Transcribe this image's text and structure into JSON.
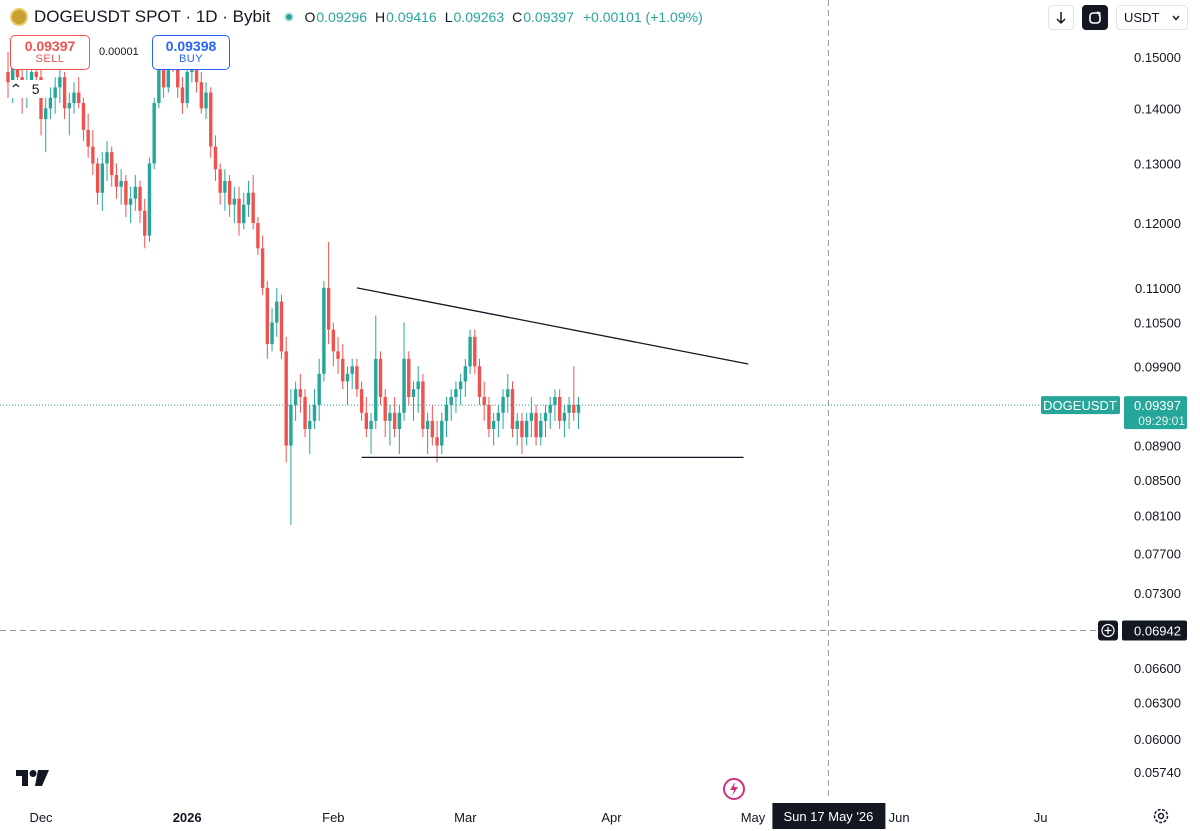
{
  "header": {
    "symbol": "DOGEUSDT SPOT · 1D · Bybit",
    "open_label": "O",
    "open": "0.09296",
    "high_label": "H",
    "high": "0.09416",
    "low_label": "L",
    "low": "0.09263",
    "close_label": "C",
    "close": "0.09397",
    "change": "+0.00101 (+1.09%)",
    "coin_icon": "doge-coin-icon",
    "status_icon": "market-open-dot-icon"
  },
  "trade": {
    "sell_price": "0.09397",
    "sell_label": "SELL",
    "spread": "0.00001",
    "buy_price": "0.09398",
    "buy_label": "BUY"
  },
  "indicators": {
    "collapse_icon": "chevron-up-icon",
    "count": "5"
  },
  "toolbar": {
    "download_icon": "arrow-down-icon",
    "sync_icon": "sync-icon",
    "currency": "USDT",
    "currency_icon": "chevron-down-icon"
  },
  "price_axis": {
    "ticks": [
      "0.15000",
      "0.14000",
      "0.13000",
      "0.12000",
      "0.11000",
      "0.10500",
      "0.09900",
      "0.08900",
      "0.08500",
      "0.08100",
      "0.07700",
      "0.07300",
      "0.06600",
      "0.06300",
      "0.06000",
      "0.05740"
    ],
    "last_symbol": "DOGEUSDT",
    "last_price": "0.09397",
    "countdown": "09:29:01",
    "crosshair_price": "0.06942",
    "crosshair_icon": "plus-circle-icon"
  },
  "time_axis": {
    "ticks": [
      "Dec",
      "2026",
      "Feb",
      "Mar",
      "Apr",
      "May",
      "Jun",
      "Ju"
    ],
    "crosshair_date": "Sun 17 May '26"
  },
  "footer": {
    "logo": "tradingview-logo",
    "bolt_icon": "lightning-icon",
    "settings_icon": "gear-icon"
  },
  "colors": {
    "up": "#26a69a",
    "down": "#ef5350",
    "text": "#131722",
    "last_price_bg": "#26a69a",
    "crosshair_bg": "#131722"
  },
  "chart_data": {
    "type": "candlestick",
    "symbol": "DOGEUSDT",
    "interval": "1D",
    "ylim": [
      0.0574,
      0.152
    ],
    "log_scale": true,
    "x": [
      "2025-11-24",
      "2026-04-15"
    ],
    "candles": [
      [
        0.147,
        0.151,
        0.142,
        0.145
      ],
      [
        0.145,
        0.15,
        0.141,
        0.149
      ],
      [
        0.149,
        0.152,
        0.144,
        0.146
      ],
      [
        0.146,
        0.149,
        0.139,
        0.142
      ],
      [
        0.142,
        0.148,
        0.14,
        0.145
      ],
      [
        0.145,
        0.149,
        0.143,
        0.147
      ],
      [
        0.147,
        0.15,
        0.143,
        0.146
      ],
      [
        0.146,
        0.148,
        0.135,
        0.138
      ],
      [
        0.138,
        0.142,
        0.132,
        0.14
      ],
      [
        0.14,
        0.144,
        0.138,
        0.142
      ],
      [
        0.142,
        0.146,
        0.139,
        0.144
      ],
      [
        0.144,
        0.148,
        0.141,
        0.146
      ],
      [
        0.146,
        0.147,
        0.138,
        0.14
      ],
      [
        0.14,
        0.143,
        0.135,
        0.141
      ],
      [
        0.141,
        0.145,
        0.139,
        0.143
      ],
      [
        0.143,
        0.146,
        0.14,
        0.141
      ],
      [
        0.141,
        0.142,
        0.134,
        0.136
      ],
      [
        0.136,
        0.139,
        0.131,
        0.133
      ],
      [
        0.133,
        0.136,
        0.128,
        0.13
      ],
      [
        0.13,
        0.131,
        0.123,
        0.125
      ],
      [
        0.125,
        0.132,
        0.122,
        0.13
      ],
      [
        0.13,
        0.134,
        0.127,
        0.132
      ],
      [
        0.132,
        0.133,
        0.126,
        0.128
      ],
      [
        0.128,
        0.13,
        0.124,
        0.126
      ],
      [
        0.126,
        0.129,
        0.123,
        0.127
      ],
      [
        0.127,
        0.128,
        0.121,
        0.123
      ],
      [
        0.123,
        0.126,
        0.12,
        0.124
      ],
      [
        0.124,
        0.128,
        0.122,
        0.126
      ],
      [
        0.126,
        0.127,
        0.12,
        0.122
      ],
      [
        0.122,
        0.124,
        0.116,
        0.118
      ],
      [
        0.118,
        0.131,
        0.117,
        0.13
      ],
      [
        0.13,
        0.142,
        0.129,
        0.141
      ],
      [
        0.141,
        0.15,
        0.14,
        0.148
      ],
      [
        0.148,
        0.153,
        0.142,
        0.144
      ],
      [
        0.144,
        0.152,
        0.143,
        0.151
      ],
      [
        0.151,
        0.153,
        0.147,
        0.149
      ],
      [
        0.149,
        0.15,
        0.142,
        0.144
      ],
      [
        0.144,
        0.146,
        0.139,
        0.141
      ],
      [
        0.141,
        0.148,
        0.14,
        0.147
      ],
      [
        0.147,
        0.152,
        0.145,
        0.15
      ],
      [
        0.15,
        0.151,
        0.143,
        0.145
      ],
      [
        0.145,
        0.147,
        0.139,
        0.14
      ],
      [
        0.14,
        0.145,
        0.138,
        0.143
      ],
      [
        0.143,
        0.144,
        0.131,
        0.133
      ],
      [
        0.133,
        0.135,
        0.127,
        0.129
      ],
      [
        0.129,
        0.13,
        0.123,
        0.125
      ],
      [
        0.125,
        0.129,
        0.122,
        0.127
      ],
      [
        0.127,
        0.128,
        0.121,
        0.123
      ],
      [
        0.123,
        0.126,
        0.12,
        0.124
      ],
      [
        0.124,
        0.126,
        0.118,
        0.12
      ],
      [
        0.12,
        0.125,
        0.119,
        0.123
      ],
      [
        0.123,
        0.127,
        0.121,
        0.125
      ],
      [
        0.125,
        0.128,
        0.119,
        0.12
      ],
      [
        0.12,
        0.121,
        0.115,
        0.116
      ],
      [
        0.116,
        0.118,
        0.109,
        0.11
      ],
      [
        0.11,
        0.111,
        0.1,
        0.102
      ],
      [
        0.102,
        0.107,
        0.101,
        0.105
      ],
      [
        0.105,
        0.11,
        0.103,
        0.108
      ],
      [
        0.108,
        0.109,
        0.1,
        0.101
      ],
      [
        0.101,
        0.103,
        0.087,
        0.089
      ],
      [
        0.089,
        0.096,
        0.08,
        0.094
      ],
      [
        0.094,
        0.097,
        0.092,
        0.096
      ],
      [
        0.096,
        0.098,
        0.093,
        0.095
      ],
      [
        0.095,
        0.096,
        0.09,
        0.091
      ],
      [
        0.091,
        0.094,
        0.088,
        0.092
      ],
      [
        0.092,
        0.096,
        0.091,
        0.094
      ],
      [
        0.094,
        0.1,
        0.092,
        0.098
      ],
      [
        0.098,
        0.111,
        0.097,
        0.11
      ],
      [
        0.11,
        0.117,
        0.102,
        0.104
      ],
      [
        0.104,
        0.105,
        0.099,
        0.101
      ],
      [
        0.101,
        0.103,
        0.098,
        0.1
      ],
      [
        0.1,
        0.102,
        0.096,
        0.097
      ],
      [
        0.097,
        0.099,
        0.094,
        0.098
      ],
      [
        0.098,
        0.1,
        0.096,
        0.099
      ],
      [
        0.099,
        0.1,
        0.095,
        0.096
      ],
      [
        0.096,
        0.097,
        0.092,
        0.093
      ],
      [
        0.093,
        0.095,
        0.09,
        0.091
      ],
      [
        0.091,
        0.093,
        0.088,
        0.092
      ],
      [
        0.092,
        0.106,
        0.091,
        0.1
      ],
      [
        0.1,
        0.101,
        0.094,
        0.095
      ],
      [
        0.095,
        0.096,
        0.09,
        0.092
      ],
      [
        0.092,
        0.094,
        0.089,
        0.093
      ],
      [
        0.093,
        0.095,
        0.09,
        0.091
      ],
      [
        0.091,
        0.094,
        0.088,
        0.093
      ],
      [
        0.093,
        0.105,
        0.092,
        0.1
      ],
      [
        0.1,
        0.101,
        0.094,
        0.095
      ],
      [
        0.095,
        0.097,
        0.092,
        0.096
      ],
      [
        0.096,
        0.099,
        0.093,
        0.097
      ],
      [
        0.097,
        0.098,
        0.09,
        0.091
      ],
      [
        0.091,
        0.093,
        0.088,
        0.092
      ],
      [
        0.092,
        0.094,
        0.089,
        0.09
      ],
      [
        0.09,
        0.092,
        0.087,
        0.089
      ],
      [
        0.089,
        0.093,
        0.088,
        0.092
      ],
      [
        0.092,
        0.095,
        0.09,
        0.094
      ],
      [
        0.094,
        0.096,
        0.092,
        0.095
      ],
      [
        0.095,
        0.097,
        0.093,
        0.096
      ],
      [
        0.096,
        0.098,
        0.094,
        0.097
      ],
      [
        0.097,
        0.1,
        0.095,
        0.099
      ],
      [
        0.099,
        0.104,
        0.098,
        0.103
      ],
      [
        0.103,
        0.104,
        0.098,
        0.099
      ],
      [
        0.099,
        0.1,
        0.094,
        0.095
      ],
      [
        0.095,
        0.097,
        0.092,
        0.094
      ],
      [
        0.094,
        0.095,
        0.09,
        0.091
      ],
      [
        0.091,
        0.093,
        0.089,
        0.092
      ],
      [
        0.092,
        0.094,
        0.09,
        0.093
      ],
      [
        0.093,
        0.096,
        0.091,
        0.095
      ],
      [
        0.095,
        0.098,
        0.093,
        0.096
      ],
      [
        0.096,
        0.097,
        0.09,
        0.091
      ],
      [
        0.091,
        0.093,
        0.089,
        0.092
      ],
      [
        0.092,
        0.093,
        0.088,
        0.09
      ],
      [
        0.09,
        0.093,
        0.089,
        0.092
      ],
      [
        0.092,
        0.095,
        0.09,
        0.093
      ],
      [
        0.093,
        0.094,
        0.089,
        0.09
      ],
      [
        0.09,
        0.093,
        0.089,
        0.092
      ],
      [
        0.092,
        0.094,
        0.09,
        0.093
      ],
      [
        0.093,
        0.095,
        0.091,
        0.094
      ],
      [
        0.094,
        0.096,
        0.092,
        0.095
      ],
      [
        0.095,
        0.096,
        0.091,
        0.092
      ],
      [
        0.092,
        0.094,
        0.09,
        0.093
      ],
      [
        0.093,
        0.095,
        0.091,
        0.094
      ],
      [
        0.094,
        0.099,
        0.092,
        0.093
      ],
      [
        0.093,
        0.095,
        0.091,
        0.094
      ]
    ],
    "trendlines": [
      {
        "name": "descending-resistance",
        "from": [
          "2026-02-06",
          0.11
        ],
        "to": [
          "2026-04-30",
          0.0993
        ]
      },
      {
        "name": "horizontal-support",
        "from": [
          "2026-02-07",
          0.0876
        ],
        "to": [
          "2026-04-29",
          0.0876
        ]
      }
    ],
    "last_price": 0.09397,
    "crosshair": {
      "price": 0.06942,
      "date": "2026-05-17"
    }
  }
}
